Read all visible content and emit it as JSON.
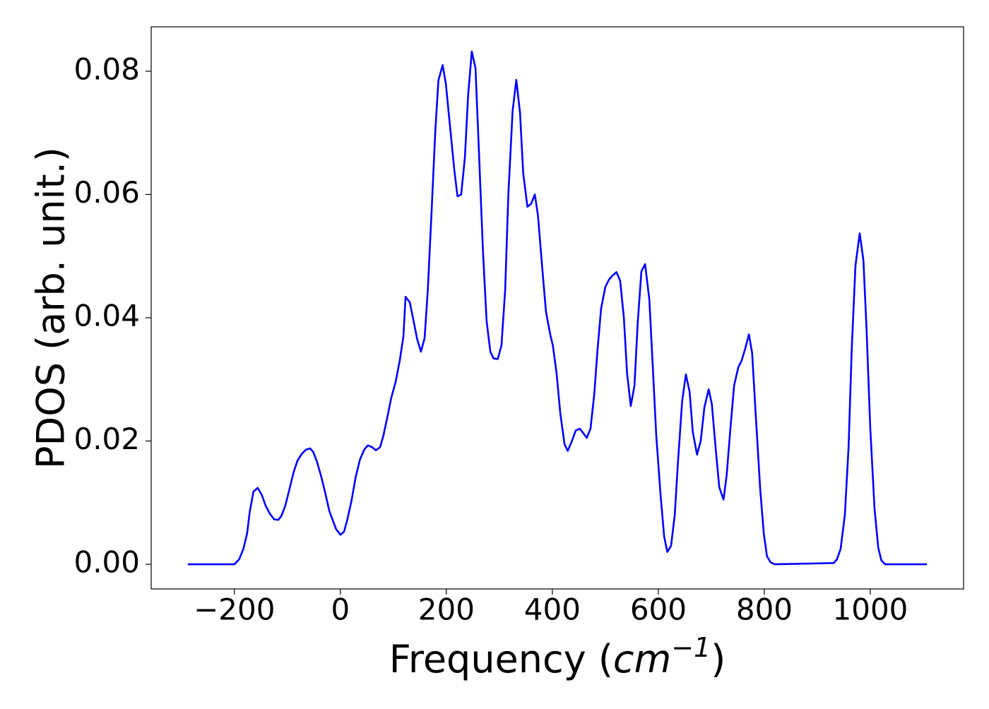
{
  "chart_data": {
    "type": "line",
    "ylabel": "PDOS (arb. unit.)",
    "xlabel": [
      "Frequency (",
      "cm",
      "−1",
      ")"
    ],
    "xlim": [
      -357,
      1176
    ],
    "ylim": [
      -0.004,
      0.0872
    ],
    "xticks": [
      {
        "value": -200,
        "label": "−200"
      },
      0,
      200,
      400,
      600,
      800,
      1000
    ],
    "yticks": [
      {
        "value": 0,
        "label": "0.00"
      },
      0.02,
      0.04,
      0.06,
      0.08
    ],
    "x": [
      -288,
      -200,
      -191,
      -183,
      -176,
      -171,
      -164,
      -156,
      -148,
      -141,
      -133,
      -125,
      -117,
      -111,
      -104,
      -96,
      -88,
      -81,
      -73,
      -65,
      -57,
      -51,
      -44,
      -36,
      -28,
      -21,
      -15,
      -8,
      0,
      7,
      13,
      21,
      29,
      37,
      45,
      52,
      60,
      67,
      75,
      81,
      89,
      96,
      104,
      112,
      119,
      123,
      131,
      137,
      145,
      152,
      159,
      165,
      172,
      179,
      185,
      193,
      199,
      207,
      215,
      221,
      228,
      235,
      241,
      248,
      255,
      261,
      269,
      276,
      283,
      289,
      297,
      304,
      311,
      317,
      325,
      332,
      339,
      345,
      353,
      360,
      367,
      373,
      381,
      388,
      396,
      401,
      408,
      415,
      423,
      429,
      437,
      444,
      452,
      459,
      465,
      472,
      479,
      485,
      492,
      500,
      507,
      513,
      521,
      528,
      535,
      541,
      548,
      555,
      561,
      568,
      575,
      583,
      589,
      596,
      604,
      611,
      617,
      624,
      631,
      637,
      645,
      652,
      659,
      665,
      673,
      680,
      687,
      695,
      701,
      708,
      715,
      723,
      729,
      736,
      743,
      751,
      757,
      764,
      771,
      777,
      784,
      792,
      799,
      805,
      812,
      820,
      931,
      937,
      944,
      952,
      959,
      965,
      972,
      980,
      987,
      993,
      1000,
      1008,
      1015,
      1021,
      1028,
      1107
    ],
    "series": [
      {
        "color": "#0000ff",
        "values": [
          0,
          0,
          0.0008,
          0.0025,
          0.005,
          0.0085,
          0.0118,
          0.0124,
          0.0112,
          0.0095,
          0.0082,
          0.0073,
          0.0072,
          0.0079,
          0.0095,
          0.0122,
          0.015,
          0.0168,
          0.0179,
          0.0186,
          0.0188,
          0.0182,
          0.0166,
          0.0142,
          0.0114,
          0.0087,
          0.0073,
          0.0057,
          0.0048,
          0.0053,
          0.0072,
          0.0103,
          0.0142,
          0.017,
          0.0186,
          0.0193,
          0.019,
          0.0185,
          0.019,
          0.0208,
          0.024,
          0.027,
          0.0295,
          0.033,
          0.037,
          0.0434,
          0.0425,
          0.04,
          0.0365,
          0.0345,
          0.0367,
          0.0445,
          0.057,
          0.07,
          0.0785,
          0.081,
          0.078,
          0.071,
          0.064,
          0.0597,
          0.06,
          0.066,
          0.076,
          0.0832,
          0.0805,
          0.068,
          0.051,
          0.0394,
          0.0345,
          0.0334,
          0.0333,
          0.0355,
          0.0445,
          0.06,
          0.0735,
          0.0786,
          0.0733,
          0.0635,
          0.058,
          0.0585,
          0.06,
          0.0565,
          0.048,
          0.041,
          0.0373,
          0.0355,
          0.031,
          0.0245,
          0.0195,
          0.0184,
          0.02,
          0.0217,
          0.022,
          0.0212,
          0.0205,
          0.022,
          0.0275,
          0.0345,
          0.0415,
          0.045,
          0.0462,
          0.0468,
          0.0474,
          0.046,
          0.04,
          0.031,
          0.0257,
          0.029,
          0.039,
          0.0475,
          0.0487,
          0.043,
          0.033,
          0.021,
          0.0115,
          0.0045,
          0.002,
          0.003,
          0.008,
          0.0165,
          0.0265,
          0.0308,
          0.028,
          0.0215,
          0.0178,
          0.02,
          0.0255,
          0.0284,
          0.026,
          0.019,
          0.0125,
          0.0105,
          0.0145,
          0.022,
          0.029,
          0.032,
          0.033,
          0.035,
          0.0373,
          0.0343,
          0.024,
          0.0125,
          0.005,
          0.0013,
          0.0003,
          0,
          0.0002,
          0.0008,
          0.0025,
          0.008,
          0.019,
          0.035,
          0.0485,
          0.0537,
          0.0493,
          0.038,
          0.022,
          0.009,
          0.0027,
          0.0006,
          0,
          0
        ]
      }
    ]
  }
}
